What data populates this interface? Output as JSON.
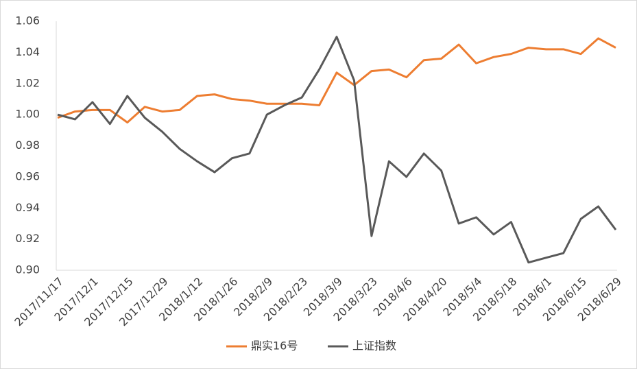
{
  "chart_data": {
    "type": "line",
    "categories": [
      "2017/11/17",
      null,
      "2017/12/1",
      null,
      "2017/12/15",
      null,
      "2017/12/29",
      null,
      "2018/1/12",
      null,
      "2018/1/26",
      null,
      "2018/2/9",
      null,
      "2018/2/23",
      null,
      "2018/3/9",
      null,
      "2018/3/23",
      null,
      "2018/4/6",
      null,
      "2018/4/20",
      null,
      "2018/5/4",
      null,
      "2018/5/18",
      null,
      "2018/6/1",
      null,
      "2018/6/15",
      null,
      "2018/6/29"
    ],
    "series": [
      {
        "name": "鼎实16号",
        "color": "#ed7d31",
        "values": [
          0.998,
          1.002,
          1.003,
          1.003,
          0.995,
          1.005,
          1.002,
          1.003,
          1.012,
          1.013,
          1.01,
          1.009,
          1.007,
          1.007,
          1.007,
          1.006,
          1.027,
          1.019,
          1.028,
          1.029,
          1.024,
          1.035,
          1.036,
          1.045,
          1.033,
          1.037,
          1.039,
          1.043,
          1.042,
          1.042,
          1.039,
          1.049,
          1.043
        ]
      },
      {
        "name": "上证指数",
        "color": "#595959",
        "values": [
          1.0,
          0.997,
          1.008,
          0.994,
          1.012,
          0.998,
          0.989,
          0.978,
          0.97,
          0.963,
          0.972,
          0.975,
          1.0,
          1.006,
          1.011,
          1.029,
          1.05,
          1.022,
          0.922,
          0.97,
          0.96,
          0.975,
          0.964,
          0.93,
          0.934,
          0.923,
          0.931,
          0.905,
          0.908,
          0.911,
          0.933,
          0.941,
          0.926
        ]
      }
    ],
    "ylim": [
      0.9,
      1.06
    ],
    "yticks": [
      {
        "value": 0.9,
        "label": "0.90"
      },
      0.92,
      0.94,
      0.96,
      0.98,
      {
        "value": 1,
        "label": "1.00"
      },
      1.02,
      1.04,
      1.06
    ],
    "grid": false,
    "legend": "bottom"
  }
}
